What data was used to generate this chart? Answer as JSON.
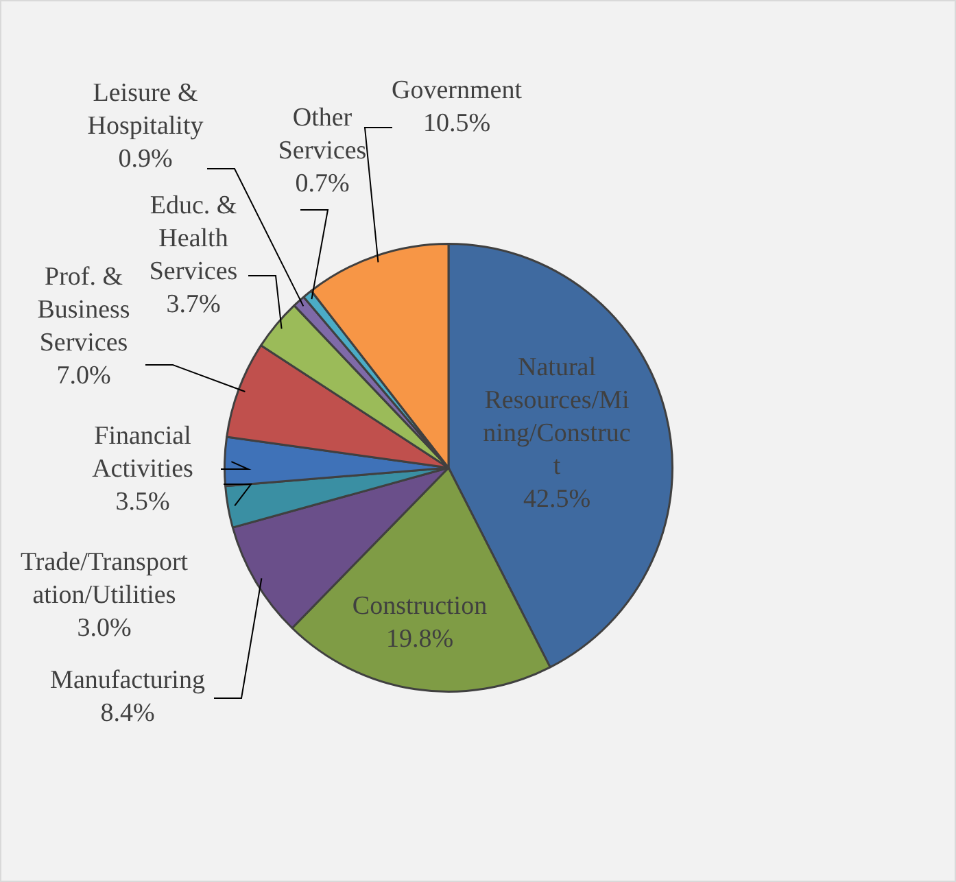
{
  "chart_data": {
    "type": "pie",
    "categories": [
      "Natural Resources/Mining/Construct",
      "Construction",
      "Manufacturing",
      "Trade/Transportation/Utilities",
      "Financial Activities",
      "Prof. & Business Services",
      "Educ. & Health Services",
      "Leisure & Hospitality",
      "Other Services",
      "Government"
    ],
    "values": [
      42.5,
      19.8,
      8.4,
      3.0,
      3.5,
      7.0,
      3.7,
      0.9,
      0.7,
      10.5
    ],
    "value_labels": [
      "42.5%",
      "19.8%",
      "8.4%",
      "3.0%",
      "3.5%",
      "7.0%",
      "3.7%",
      "0.9%",
      "0.7%",
      "10.5%"
    ],
    "colors": [
      "#3f6aa0",
      "#7f9c45",
      "#6a4f8a",
      "#3a8fa3",
      "#3f72b8",
      "#c0504d",
      "#9bbb59",
      "#7f6aa8",
      "#4bacc6",
      "#f79646"
    ],
    "legend": false
  }
}
